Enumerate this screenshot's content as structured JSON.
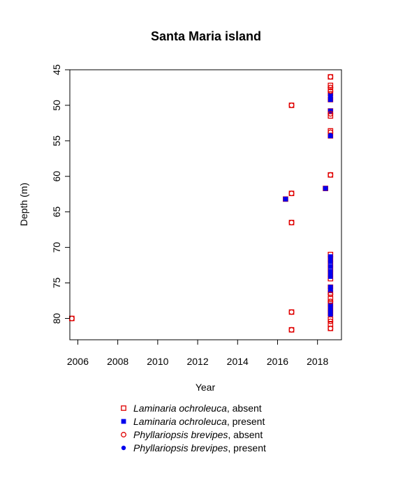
{
  "chart_data": {
    "type": "scatter",
    "title": "Santa Maria island",
    "xlabel": "Year",
    "ylabel": "Depth (m)",
    "xlim": [
      2005.6,
      2019.2
    ],
    "ylim": [
      45,
      83
    ],
    "y_reversed": true,
    "x_ticks": [
      "2006",
      "2008",
      "2010",
      "2012",
      "2014",
      "2016",
      "2018"
    ],
    "y_ticks": [
      "45",
      "50",
      "55",
      "60",
      "65",
      "70",
      "75",
      "80"
    ],
    "legend_position": "bottom",
    "series": [
      {
        "name": "absent",
        "species": "Laminaria ochroleuca",
        "status": ", absent",
        "marker": "square-open",
        "color": "#e00000",
        "points": [
          [
            2005.7,
            80
          ],
          [
            2016.7,
            50
          ],
          [
            2016.4,
            63.2
          ],
          [
            2016.7,
            62.4
          ],
          [
            2016.7,
            66.5
          ],
          [
            2016.7,
            79.1
          ],
          [
            2016.7,
            81.6
          ],
          [
            2018.4,
            61.7
          ],
          [
            2018.65,
            46
          ],
          [
            2018.65,
            47.2
          ],
          [
            2018.65,
            47.8
          ],
          [
            2018.65,
            48.4
          ],
          [
            2018.65,
            49.2
          ],
          [
            2018.65,
            50.8
          ],
          [
            2018.65,
            51.5
          ],
          [
            2018.65,
            53.6
          ],
          [
            2018.65,
            54.3
          ],
          [
            2018.65,
            59.8
          ],
          [
            2018.65,
            71
          ],
          [
            2018.65,
            71.6
          ],
          [
            2018.65,
            72.3
          ],
          [
            2018.65,
            73
          ],
          [
            2018.65,
            73.7
          ],
          [
            2018.65,
            74.4
          ],
          [
            2018.65,
            75.6
          ],
          [
            2018.65,
            76.4
          ],
          [
            2018.65,
            77.2
          ],
          [
            2018.65,
            77.9
          ],
          [
            2018.65,
            78.6
          ],
          [
            2018.65,
            79.3
          ],
          [
            2018.65,
            80.1
          ],
          [
            2018.65,
            80.8
          ],
          [
            2018.65,
            81.4
          ]
        ]
      },
      {
        "name": "present",
        "species": "Laminaria ochroleuca",
        "status": ", present",
        "marker": "square-filled",
        "color": "#0000ee",
        "points": [
          [
            2016.4,
            63.2
          ],
          [
            2018.4,
            61.7
          ],
          [
            2018.65,
            48.6
          ],
          [
            2018.65,
            49.2
          ],
          [
            2018.65,
            50.8
          ],
          [
            2018.65,
            54.3
          ],
          [
            2018.65,
            71.3
          ],
          [
            2018.65,
            72
          ],
          [
            2018.65,
            72.7
          ],
          [
            2018.65,
            73.4
          ],
          [
            2018.65,
            74.1
          ],
          [
            2018.65,
            75.6
          ],
          [
            2018.65,
            76.1
          ],
          [
            2018.65,
            78.1
          ],
          [
            2018.65,
            78.8
          ],
          [
            2018.65,
            79.4
          ]
        ]
      },
      {
        "name": "absent",
        "species": "Phyllariopsis brevipes",
        "status": ", absent",
        "marker": "circle-open",
        "color": "#e00000",
        "points": [
          [
            2005.7,
            80
          ],
          [
            2016.7,
            50
          ],
          [
            2016.7,
            62.4
          ],
          [
            2016.7,
            66.5
          ],
          [
            2016.7,
            79.1
          ],
          [
            2016.7,
            81.6
          ],
          [
            2018.65,
            46
          ],
          [
            2018.65,
            47.5
          ],
          [
            2018.65,
            48
          ],
          [
            2018.65,
            51.2
          ],
          [
            2018.65,
            53.8
          ],
          [
            2018.65,
            59.8
          ],
          [
            2018.65,
            76.6
          ],
          [
            2018.65,
            77.6
          ],
          [
            2018.65,
            80.4
          ],
          [
            2018.65,
            81.4
          ]
        ]
      },
      {
        "name": "present",
        "species": "Phyllariopsis brevipes",
        "status": ", present",
        "marker": "circle-filled",
        "color": "#0000ee",
        "points": [
          [
            2016.4,
            63.2
          ],
          [
            2018.4,
            61.7
          ],
          [
            2018.65,
            48.8
          ],
          [
            2018.65,
            54.2
          ],
          [
            2018.65,
            71.8
          ],
          [
            2018.65,
            73.8
          ],
          [
            2018.65,
            75.8
          ],
          [
            2018.65,
            78.4
          ],
          [
            2018.65,
            79.1
          ]
        ]
      }
    ]
  }
}
